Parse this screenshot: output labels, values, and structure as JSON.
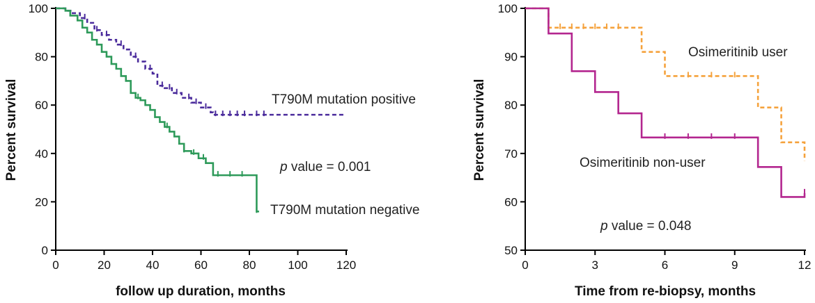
{
  "chart_data": [
    {
      "type": "line",
      "subtype": "kaplan-meier",
      "xlabel": "follow up duration, months",
      "ylabel": "Percent survival",
      "xlim": [
        0,
        120
      ],
      "ylim": [
        0,
        100
      ],
      "xticks": [
        0,
        20,
        40,
        60,
        80,
        100,
        120
      ],
      "yticks": [
        0,
        20,
        40,
        60,
        80,
        100
      ],
      "annotations": {
        "positive_label": "T790M mutation positive",
        "negative_label": "T790M mutation negative",
        "p_symbol": "p",
        "p_text": " value = 0.001"
      },
      "series": [
        {
          "name": "T790M mutation positive",
          "color": "#4b2c9c",
          "dash": true,
          "x": [
            0,
            4,
            7,
            10,
            13,
            16,
            19,
            22,
            25,
            28,
            31,
            34,
            37,
            40,
            42,
            45,
            48,
            52,
            56,
            60,
            64,
            65,
            70,
            80,
            90,
            100,
            119
          ],
          "y": [
            100,
            99,
            98,
            96,
            94,
            91,
            89,
            87,
            85,
            83,
            80,
            78,
            75,
            73,
            68,
            67,
            65,
            63,
            61,
            59,
            57,
            56,
            56,
            56,
            56,
            56,
            56
          ],
          "censor_x": [
            12,
            17,
            21,
            27,
            33,
            39,
            44,
            47,
            50,
            55,
            58,
            62,
            66,
            69,
            72,
            75,
            78,
            83,
            86
          ]
        },
        {
          "name": "T790M mutation negative",
          "color": "#2e9a5a",
          "dash": false,
          "x": [
            0,
            4,
            6,
            9,
            11,
            13,
            15,
            17,
            19,
            21,
            23,
            25,
            27,
            29,
            31,
            33,
            35,
            37,
            39,
            41,
            43,
            45,
            47,
            49,
            51,
            53,
            56,
            59,
            62,
            65,
            70,
            80,
            83,
            84
          ],
          "y": [
            100,
            99,
            97,
            95,
            92,
            90,
            87,
            85,
            82,
            80,
            77,
            75,
            72,
            70,
            65,
            63,
            62,
            60,
            58,
            55,
            53,
            51,
            49,
            47,
            44,
            41,
            40,
            38,
            36,
            31,
            31,
            31,
            16,
            16
          ],
          "censor_x": [
            34,
            46,
            53,
            57,
            61,
            67,
            72,
            77,
            83
          ]
        }
      ]
    },
    {
      "type": "line",
      "subtype": "kaplan-meier",
      "xlabel": "Time from re-biopsy, months",
      "ylabel": "Percent survival",
      "xlim": [
        0,
        12
      ],
      "ylim": [
        50,
        100
      ],
      "xticks": [
        0,
        3,
        6,
        9,
        12
      ],
      "yticks": [
        50,
        60,
        70,
        80,
        90,
        100
      ],
      "annotations": {
        "user_label": "Osimeritinib user",
        "nonuser_label": "Osimeritinib non-user",
        "p_symbol": "p",
        "p_text": " value = 0.048"
      },
      "series": [
        {
          "name": "Osimeritinib user",
          "color": "#f5a23c",
          "dash": true,
          "x": [
            0,
            1,
            5,
            6,
            10,
            11,
            12
          ],
          "y": [
            100,
            96,
            91,
            86,
            79.5,
            72.3,
            68.5
          ],
          "censor_x": [
            1.5,
            2,
            2.5,
            3,
            3.5,
            4,
            7,
            8,
            9
          ]
        },
        {
          "name": "Osimeritinib non-user",
          "color": "#b3268f",
          "dash": false,
          "x": [
            0,
            1,
            2,
            3,
            4,
            5,
            10,
            11,
            12
          ],
          "y": [
            100,
            94.8,
            87,
            82.7,
            78.3,
            73.3,
            67.2,
            61,
            61.8
          ],
          "censor_x": [
            6,
            7,
            8,
            9,
            12
          ]
        }
      ]
    }
  ]
}
